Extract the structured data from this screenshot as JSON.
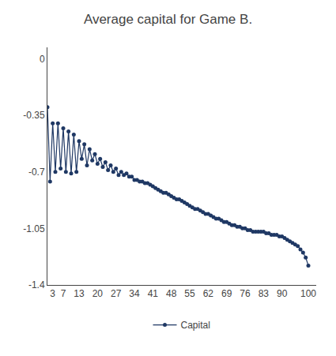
{
  "chart_data": {
    "type": "line",
    "title": "Average capital for Game B.",
    "x": [
      1,
      2,
      3,
      4,
      5,
      6,
      7,
      8,
      9,
      10,
      11,
      12,
      13,
      14,
      15,
      16,
      17,
      18,
      19,
      20,
      21,
      22,
      23,
      24,
      25,
      26,
      27,
      28,
      29,
      30,
      31,
      32,
      33,
      34,
      35,
      36,
      37,
      38,
      39,
      40,
      41,
      42,
      43,
      44,
      45,
      46,
      47,
      48,
      49,
      50,
      51,
      52,
      53,
      54,
      55,
      56,
      57,
      58,
      59,
      60,
      61,
      62,
      63,
      64,
      65,
      66,
      67,
      68,
      69,
      70,
      71,
      72,
      73,
      74,
      75,
      76,
      77,
      78,
      79,
      80,
      81,
      82,
      83,
      84,
      85,
      86,
      87,
      88,
      89,
      90,
      91,
      92,
      93,
      94,
      95,
      96,
      97,
      98,
      99,
      100
    ],
    "series": [
      {
        "name": "Capital",
        "color": "#1F3864",
        "marker": "circle",
        "values": [
          -0.3,
          -0.76,
          -0.4,
          -0.7,
          -0.4,
          -0.68,
          -0.43,
          -0.7,
          -0.45,
          -0.71,
          -0.47,
          -0.7,
          -0.51,
          -0.62,
          -0.53,
          -0.66,
          -0.56,
          -0.63,
          -0.59,
          -0.65,
          -0.62,
          -0.67,
          -0.64,
          -0.69,
          -0.66,
          -0.7,
          -0.68,
          -0.72,
          -0.7,
          -0.72,
          -0.71,
          -0.73,
          -0.73,
          -0.75,
          -0.75,
          -0.76,
          -0.76,
          -0.77,
          -0.77,
          -0.78,
          -0.79,
          -0.8,
          -0.81,
          -0.82,
          -0.83,
          -0.83,
          -0.84,
          -0.85,
          -0.86,
          -0.87,
          -0.87,
          -0.88,
          -0.89,
          -0.9,
          -0.91,
          -0.92,
          -0.93,
          -0.93,
          -0.94,
          -0.95,
          -0.96,
          -0.96,
          -0.97,
          -0.98,
          -0.99,
          -0.99,
          -1.0,
          -1.01,
          -1.01,
          -1.02,
          -1.03,
          -1.03,
          -1.04,
          -1.04,
          -1.05,
          -1.05,
          -1.06,
          -1.06,
          -1.07,
          -1.07,
          -1.07,
          -1.07,
          -1.07,
          -1.08,
          -1.08,
          -1.09,
          -1.09,
          -1.09,
          -1.1,
          -1.1,
          -1.11,
          -1.12,
          -1.13,
          -1.14,
          -1.15,
          -1.16,
          -1.18,
          -1.2,
          -1.23,
          -1.28
        ]
      }
    ],
    "xlim": [
      1,
      103
    ],
    "xticks": [
      3,
      7,
      13,
      20,
      27,
      34,
      41,
      48,
      55,
      62,
      69,
      76,
      83,
      90,
      100
    ],
    "ylim": [
      -1.4,
      0.07
    ],
    "yticks": [
      0,
      -0.35,
      -0.7,
      -1.05,
      -1.4
    ],
    "grid": false,
    "legend": "bottom"
  }
}
